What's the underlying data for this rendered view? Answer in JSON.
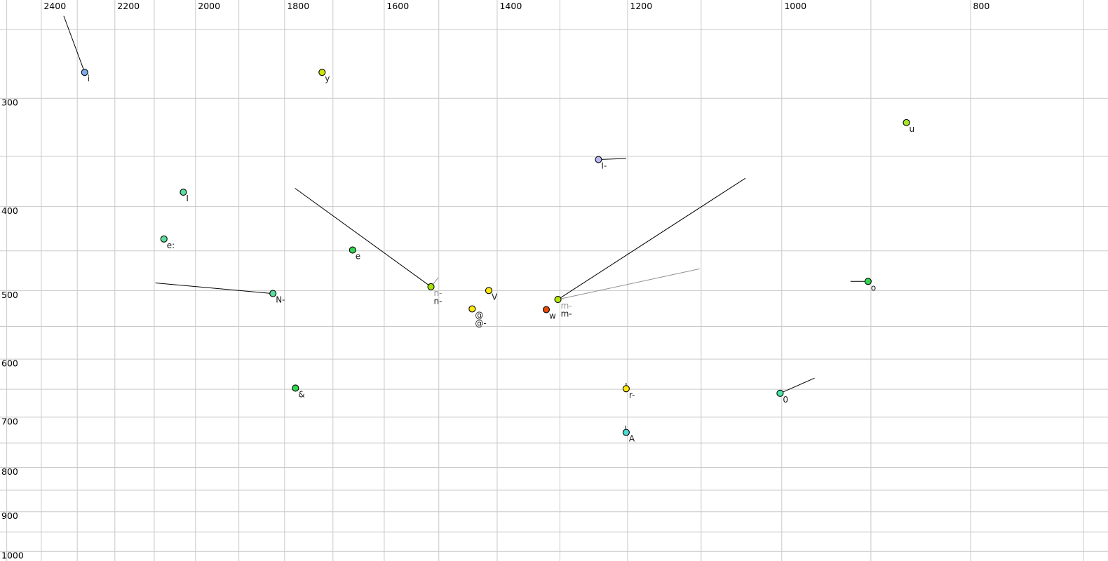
{
  "chart_data": {
    "type": "scatter",
    "title": "",
    "xlabel": "",
    "ylabel": "",
    "grid": "on",
    "gridline_color": "#c9c9c9",
    "background_color": "#ffffff",
    "axis_label_color": "#000000",
    "point_label_color": "#1a1a1a",
    "secondary_label_color": "#909090",
    "x_axis": {
      "unit": "Hz",
      "scale": "log",
      "direction": "reversed",
      "left_value": 2520,
      "right_value": 680,
      "grid_min": 700,
      "grid_max": 2500,
      "grid_step": 100,
      "tick_labels": [
        2400,
        2200,
        2000,
        1800,
        1600,
        1400,
        1200,
        1000,
        800
      ]
    },
    "y_axis": {
      "unit": "Hz",
      "scale": "log",
      "direction": "down",
      "top_value": 231,
      "bottom_value": 1026,
      "grid_min": 250,
      "grid_max": 1000,
      "grid_step": 50,
      "tick_labels": [
        300,
        400,
        500,
        600,
        700,
        800,
        900,
        1000
      ]
    },
    "points": [
      {
        "id": "i",
        "f2": 2280,
        "f1": 280,
        "color": "#7fa8e8",
        "labels": [
          {
            "text": "i",
            "color": "#1a1a1a"
          }
        ],
        "trails": [
          {
            "f2": 2337,
            "f1": 241,
            "color": "#000000"
          }
        ]
      },
      {
        "id": "y",
        "f2": 1722,
        "f1": 280,
        "color": "#cce500",
        "labels": [
          {
            "text": "y",
            "color": "#1a1a1a"
          }
        ],
        "trails": []
      },
      {
        "id": "u",
        "f2": 863,
        "f1": 320,
        "color": "#a8e428",
        "labels": [
          {
            "text": "u",
            "color": "#1a1a1a"
          }
        ],
        "trails": []
      },
      {
        "id": "I-",
        "f2": 1242,
        "f1": 353,
        "color": "#b8b8f0",
        "labels": [
          {
            "text": "I-",
            "color": "#1a1a1a"
          }
        ],
        "trails": [
          {
            "f2": 1202,
            "f1": 352,
            "color": "#000000"
          }
        ]
      },
      {
        "id": "I",
        "f2": 2029,
        "f1": 385,
        "color": "#5cdc9c",
        "labels": [
          {
            "text": "I",
            "color": "#1a1a1a"
          }
        ],
        "trails": []
      },
      {
        "id": "e:",
        "f2": 2076,
        "f1": 436,
        "color": "#5cdc9c",
        "labels": [
          {
            "text": "e:",
            "color": "#1a1a1a"
          }
        ],
        "trails": []
      },
      {
        "id": "e",
        "f2": 1661,
        "f1": 449,
        "color": "#2fd64f",
        "labels": [
          {
            "text": "e",
            "color": "#1a1a1a"
          }
        ],
        "trails": []
      },
      {
        "id": "N-",
        "f2": 1825,
        "f1": 504,
        "color": "#5cdc9c",
        "labels": [
          {
            "text": "N-",
            "color": "#1a1a1a"
          }
        ],
        "trails": [
          {
            "f2": 2097,
            "f1": 490,
            "color": "#000000"
          }
        ]
      },
      {
        "id": "n-",
        "f2": 1514,
        "f1": 495,
        "color": "#a8e400",
        "labels": [
          {
            "text": "n-",
            "color": "#909090"
          },
          {
            "text": "n-",
            "color": "#1a1a1a"
          }
        ],
        "trails": [
          {
            "f2": 1778,
            "f1": 381,
            "color": "#000000"
          },
          {
            "f2": 1501,
            "f1": 483,
            "color": "#909090"
          }
        ]
      },
      {
        "id": "V",
        "f2": 1414,
        "f1": 500,
        "color": "#ffe80c",
        "labels": [
          {
            "text": "V",
            "color": "#1a1a1a"
          }
        ],
        "trails": []
      },
      {
        "id": "@",
        "f2": 1442,
        "f1": 525,
        "color": "#ffe80c",
        "labels": [
          {
            "text": "@",
            "color": "#1a1a1a"
          },
          {
            "text": "@-",
            "color": "#1a1a1a"
          }
        ],
        "trails": []
      },
      {
        "id": "w",
        "f2": 1321,
        "f1": 526,
        "color": "#e84a00",
        "labels": [
          {
            "text": "w",
            "color": "#1a1a1a"
          }
        ],
        "trails": []
      },
      {
        "id": "m-",
        "f2": 1303,
        "f1": 512,
        "color": "#b4e800",
        "labels": [
          {
            "text": "m-",
            "color": "#909090"
          },
          {
            "text": "m-",
            "color": "#1a1a1a"
          }
        ],
        "trails": [
          {
            "f2": 1044,
            "f1": 371,
            "color": "#000000"
          },
          {
            "f2": 1102,
            "f1": 472,
            "color": "#909090"
          }
        ]
      },
      {
        "id": "o",
        "f2": 903,
        "f1": 488,
        "color": "#2fd64f",
        "labels": [
          {
            "text": "o",
            "color": "#1a1a1a"
          }
        ],
        "trails": [
          {
            "f2": 922,
            "f1": 488,
            "color": "#000000"
          }
        ]
      },
      {
        "id": "&",
        "f2": 1777,
        "f1": 648,
        "color": "#2fd64f",
        "labels": [
          {
            "text": "&",
            "color": "#1a1a1a"
          }
        ],
        "trails": []
      },
      {
        "id": "r-",
        "f2": 1202,
        "f1": 649,
        "color": "#ffe80c",
        "labels": [
          {
            "text": "r-",
            "color": "#1a1a1a"
          }
        ],
        "trails": [
          {
            "f2": 1202,
            "f1": 639,
            "color": "#000000"
          }
        ]
      },
      {
        "id": "0",
        "f2": 1002,
        "f1": 657,
        "color": "#4ae8a8",
        "labels": [
          {
            "text": "0",
            "color": "#1a1a1a"
          }
        ],
        "trails": [
          {
            "f2": 962,
            "f1": 631,
            "color": "#000000"
          }
        ]
      },
      {
        "id": "A",
        "f2": 1202,
        "f1": 729,
        "color": "#4adcd2",
        "labels": [
          {
            "text": "A",
            "color": "#1a1a1a"
          }
        ],
        "trails": [
          {
            "f2": 1203,
            "f1": 716,
            "color": "#000000"
          }
        ]
      }
    ]
  }
}
